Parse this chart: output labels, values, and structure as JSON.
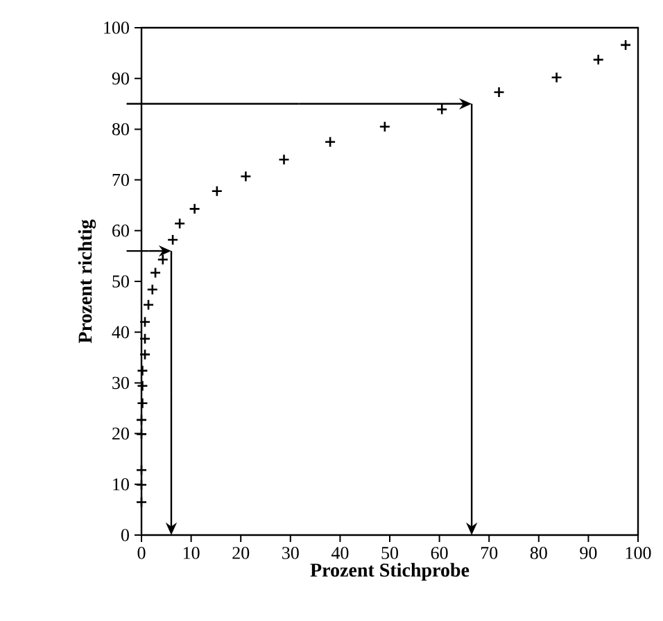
{
  "chart_data": {
    "type": "scatter",
    "xlabel": "Prozent Stichprobe",
    "ylabel": "Prozent  richtig",
    "xlim": [
      0,
      100
    ],
    "ylim": [
      0,
      100
    ],
    "xticks": [
      0,
      10,
      20,
      30,
      40,
      50,
      60,
      70,
      80,
      90,
      100
    ],
    "yticks": [
      0,
      10,
      20,
      30,
      40,
      50,
      60,
      70,
      80,
      90,
      100
    ],
    "grid": false,
    "marker": "cross",
    "series": [
      {
        "color": "#000000",
        "x": [
          0,
          0,
          0,
          0,
          0,
          0.2,
          0.2,
          0.2,
          0.7,
          0.7,
          0.7,
          1.4,
          2.2,
          2.8,
          4.3,
          6.3,
          7.7,
          10.7,
          15.2,
          21,
          28.7,
          38,
          49,
          60.5,
          72,
          83.6,
          92,
          97.5
        ],
        "values": [
          6.5,
          9.9,
          12.8,
          19.9,
          22.7,
          26,
          29.4,
          32.4,
          35.6,
          38.7,
          42,
          45.4,
          48.4,
          51.7,
          54.3,
          58.2,
          61.4,
          64.3,
          67.8,
          70.7,
          74,
          77.5,
          80.5,
          83.9,
          87.3,
          90.2,
          93.7,
          96.6
        ]
      }
    ]
  }
}
